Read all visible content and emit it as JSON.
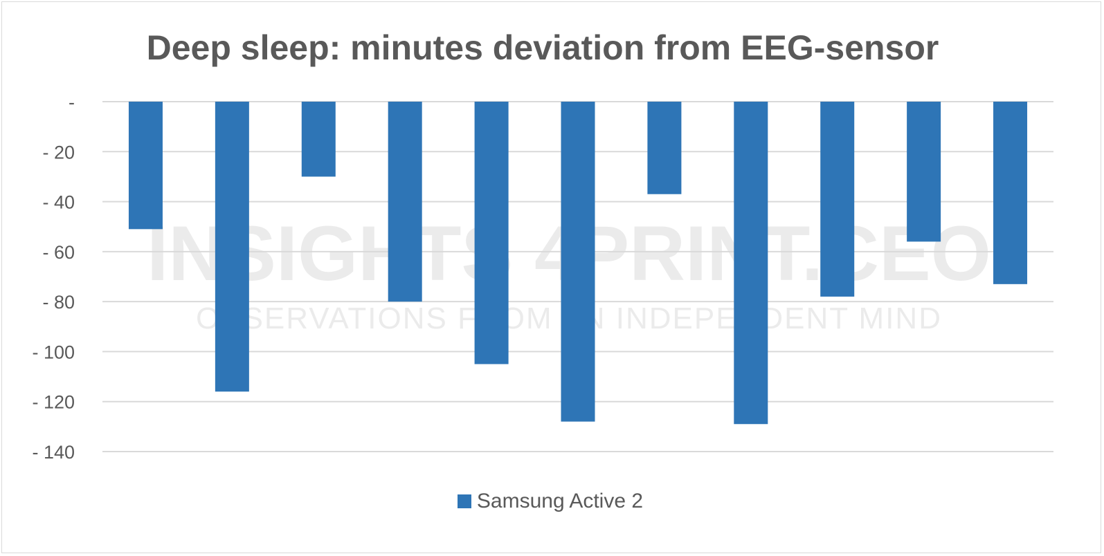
{
  "chart_data": {
    "type": "bar",
    "title": "Deep sleep: minutes deviation from EEG-sensor",
    "xlabel": "",
    "ylabel": "",
    "categories": [
      "",
      "",
      "",
      "",
      "",
      "",
      "",
      "",
      "",
      "",
      ""
    ],
    "series": [
      {
        "name": "Samsung Active 2",
        "values": [
          -51,
          -116,
          -30,
          -80,
          -105,
          -128,
          -37,
          -129,
          -78,
          -56,
          -73
        ],
        "color": "#2e75b6"
      }
    ],
    "ylim": [
      -140,
      0
    ],
    "yticks": [
      0,
      -20,
      -40,
      -60,
      -80,
      -100,
      -120,
      -140
    ],
    "ytick_labels": [
      "-",
      "- 20",
      "- 40",
      "- 60",
      "- 80",
      "- 100",
      "- 120",
      "- 140"
    ],
    "grid": true,
    "legend": "bottom"
  },
  "watermark": {
    "main": "INSIGHTS 4PRINT.CEO",
    "sub": "OBSERVATIONS FROM AN INDEPENDENT MIND"
  },
  "colors": {
    "bar": "#2e75b6",
    "grid": "#d9d9d9",
    "text": "#595959"
  }
}
